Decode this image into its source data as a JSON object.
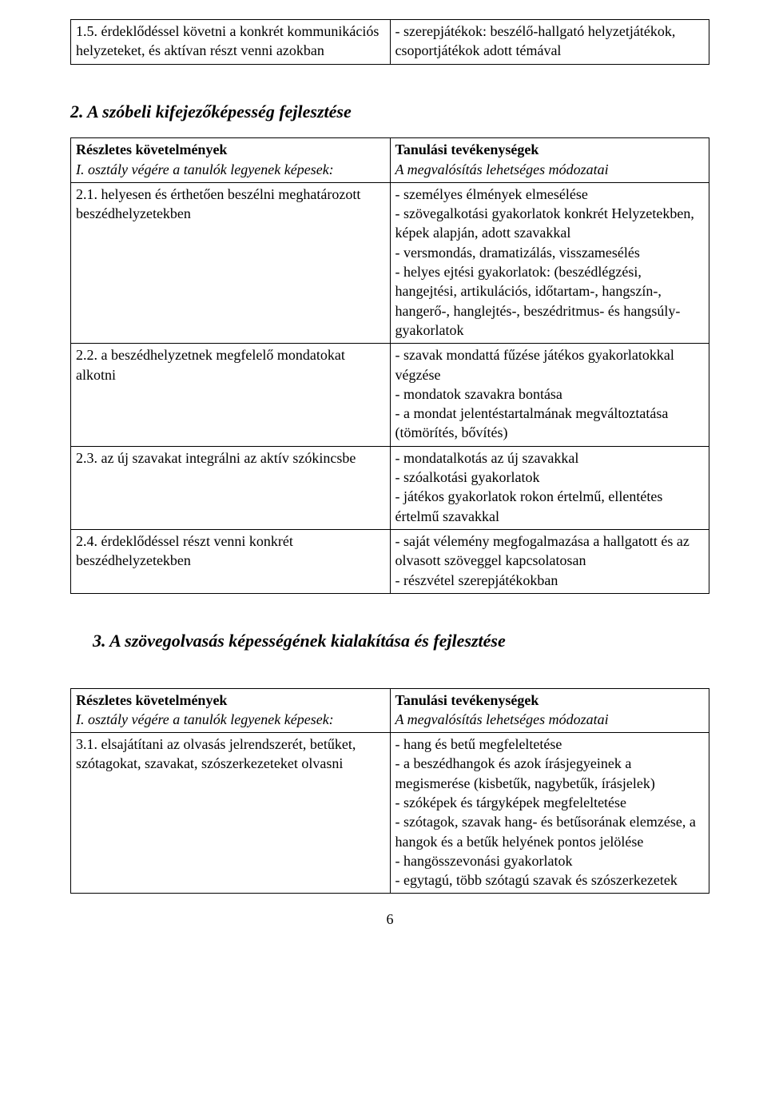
{
  "colors": {
    "background": "#ffffff",
    "text": "#000000",
    "border": "#000000"
  },
  "typography": {
    "body_family": "Times New Roman",
    "body_size_pt": 14,
    "heading_size_pt": 17
  },
  "page_number": "6",
  "table1": {
    "type": "table",
    "row": {
      "left": "1.5. érdeklődéssel követni a konkrét kommunikációs helyzeteket, és aktívan részt venni azokban",
      "right": "- szerepjátékok: beszélő-hallgató helyzetjátékok, csoportjátékok adott témával"
    }
  },
  "section2": {
    "heading": "2. A szóbeli kifejezőképesség fejlesztése",
    "header_left_bold": "Részletes követelmények",
    "header_left_italic": "I. osztály végére a tanulók legyenek képesek:",
    "header_right_bold": "Tanulási tevékenységek",
    "header_right_italic": "A megvalósítás lehetséges módozatai",
    "rows": [
      {
        "left": "2.1. helyesen és érthetően beszélni meghatározott beszédhelyzetekben",
        "right": "- személyes élmények elmesélése\n- szövegalkotási gyakorlatok konkrét Helyzetekben, képek alapján, adott szavakkal\n- versmondás, dramatizálás, visszamesélés\n- helyes ejtési gyakorlatok: (beszédlégzési, hangejtési, artikulációs, időtartam-, hangszín-, hangerő-, hanglejtés-, beszédritmus- és hangsúly-gyakorlatok"
      },
      {
        "left": "2.2. a beszédhelyzetnek megfelelő mondatokat alkotni",
        "right": "- szavak mondattá fűzése játékos gyakorlatokkal végzése\n- mondatok szavakra bontása\n- a mondat jelentéstartalmának megváltoztatása (tömörítés, bővítés)"
      },
      {
        "left": "2.3. az új szavakat integrálni az aktív szókincsbe",
        "right": "- mondatalkotás az új szavakkal\n- szóalkotási gyakorlatok\n- játékos gyakorlatok rokon értelmű, ellentétes értelmű szavakkal"
      },
      {
        "left": "2.4. érdeklődéssel részt venni konkrét beszédhelyzetekben",
        "right": "- saját vélemény megfogalmazása a hallgatott és az olvasott szöveggel kapcsolatosan\n- részvétel szerepjátékokban"
      }
    ]
  },
  "section3": {
    "heading": "3.  A szövegolvasás képességének kialakítása és fejlesztése",
    "header_left_bold": "Részletes követelmények",
    "header_left_italic": "I. osztály végére a tanulók legyenek képesek:",
    "header_right_bold": "Tanulási tevékenységek",
    "header_right_italic": "A megvalósítás lehetséges módozatai",
    "rows": [
      {
        "left": "3.1. elsajátítani az olvasás jelrendszerét, betűket, szótagokat, szavakat, szószerkezeteket olvasni",
        "right": "- hang és betű megfeleltetése\n- a beszédhangok és azok írásjegyeinek a megismerése (kisbetűk, nagybetűk, írásjelek)\n- szóképek és tárgyképek megfeleltetése\n- szótagok, szavak hang- és betűsorának elemzése, a hangok és a betűk helyének pontos jelölése\n- hangösszevonási gyakorlatok\n- egytagú, több szótagú szavak és szószerkezetek"
      }
    ]
  }
}
